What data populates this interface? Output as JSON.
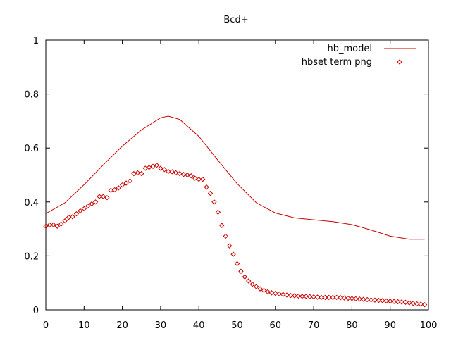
{
  "chart_data": {
    "type": "line",
    "title": "Bcd+",
    "xlabel": "",
    "ylabel": "",
    "xlim": [
      0,
      100
    ],
    "ylim": [
      0,
      1
    ],
    "x_ticks": [
      0,
      10,
      20,
      30,
      40,
      50,
      60,
      70,
      80,
      90,
      100
    ],
    "y_ticks": [
      0,
      0.2,
      0.4,
      0.6,
      0.8,
      1
    ],
    "x_tick_labels": [
      "0",
      "10",
      "20",
      "30",
      "40",
      "50",
      "60",
      "70",
      "80",
      "90",
      "100"
    ],
    "y_tick_labels": [
      "0",
      "0.2",
      "0.4",
      "0.6",
      "0.8",
      "1"
    ],
    "grid": false,
    "legend_position": "top-right",
    "colors": {
      "series": "#cc0000",
      "axes": "#000000"
    },
    "series": [
      {
        "name": "hb_model",
        "style": "line",
        "x": [
          0,
          5,
          10,
          15,
          20,
          25,
          30,
          32,
          35,
          40,
          45,
          50,
          55,
          60,
          65,
          70,
          75,
          80,
          85,
          90,
          95,
          99
        ],
        "y": [
          0.357,
          0.397,
          0.464,
          0.537,
          0.607,
          0.667,
          0.712,
          0.718,
          0.706,
          0.643,
          0.554,
          0.468,
          0.397,
          0.359,
          0.341,
          0.334,
          0.327,
          0.316,
          0.296,
          0.273,
          0.262,
          0.262
        ]
      },
      {
        "name": "hbset term png",
        "style": "points",
        "x": [
          0,
          1,
          2,
          3,
          4,
          5,
          6,
          7,
          8,
          9,
          10,
          11,
          12,
          13,
          14,
          15,
          16,
          17,
          18,
          19,
          20,
          21,
          22,
          23,
          24,
          25,
          26,
          27,
          28,
          29,
          30,
          31,
          32,
          33,
          34,
          35,
          36,
          37,
          38,
          39,
          40,
          41,
          42,
          43,
          44,
          45,
          46,
          47,
          48,
          49,
          50,
          51,
          52,
          53,
          54,
          55,
          56,
          57,
          58,
          59,
          60,
          61,
          62,
          63,
          64,
          65,
          66,
          67,
          68,
          69,
          70,
          71,
          72,
          73,
          74,
          75,
          76,
          77,
          78,
          79,
          80,
          81,
          82,
          83,
          84,
          85,
          86,
          87,
          88,
          89,
          90,
          91,
          92,
          93,
          94,
          95,
          96,
          97,
          98,
          99
        ],
        "y": [
          0.31,
          0.315,
          0.315,
          0.31,
          0.318,
          0.33,
          0.343,
          0.345,
          0.356,
          0.367,
          0.375,
          0.385,
          0.393,
          0.4,
          0.42,
          0.42,
          0.416,
          0.443,
          0.445,
          0.452,
          0.463,
          0.47,
          0.478,
          0.505,
          0.508,
          0.505,
          0.525,
          0.528,
          0.532,
          0.536,
          0.525,
          0.52,
          0.513,
          0.512,
          0.508,
          0.505,
          0.502,
          0.5,
          0.497,
          0.488,
          0.484,
          0.484,
          0.455,
          0.432,
          0.4,
          0.362,
          0.313,
          0.273,
          0.237,
          0.206,
          0.171,
          0.143,
          0.122,
          0.107,
          0.095,
          0.086,
          0.078,
          0.072,
          0.067,
          0.063,
          0.061,
          0.059,
          0.057,
          0.055,
          0.053,
          0.052,
          0.051,
          0.05,
          0.05,
          0.049,
          0.048,
          0.047,
          0.046,
          0.046,
          0.046,
          0.046,
          0.046,
          0.045,
          0.044,
          0.043,
          0.042,
          0.041,
          0.04,
          0.039,
          0.038,
          0.037,
          0.036,
          0.035,
          0.034,
          0.033,
          0.032,
          0.031,
          0.03,
          0.029,
          0.028,
          0.026,
          0.024,
          0.022,
          0.021,
          0.019
        ]
      }
    ]
  }
}
